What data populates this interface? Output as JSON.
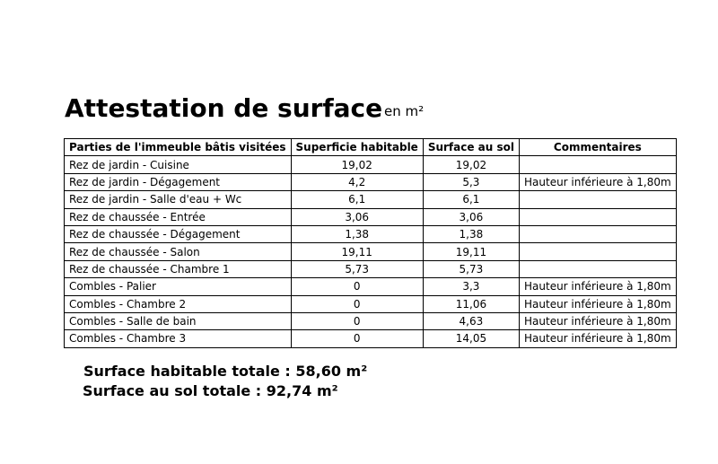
{
  "header": {
    "title": "Attestation de surface",
    "unit": "en m²"
  },
  "table": {
    "columns": [
      "Parties de l'immeuble bâtis visitées",
      "Superficie habitable",
      "Surface au sol",
      "Commentaires"
    ],
    "rows": [
      [
        "Rez de jardin - Cuisine",
        "19,02",
        "19,02",
        ""
      ],
      [
        "Rez de jardin - Dégagement",
        "4,2",
        "5,3",
        "Hauteur inférieure à 1,80m"
      ],
      [
        "Rez de jardin - Salle d'eau + Wc",
        "6,1",
        "6,1",
        ""
      ],
      [
        "Rez de chaussée - Entrée",
        "3,06",
        "3,06",
        ""
      ],
      [
        "Rez de chaussée - Dégagement",
        "1,38",
        "1,38",
        ""
      ],
      [
        "Rez de chaussée - Salon",
        "19,11",
        "19,11",
        ""
      ],
      [
        "Rez de chaussée - Chambre 1",
        "5,73",
        "5,73",
        ""
      ],
      [
        "Combles - Palier",
        "0",
        "3,3",
        "Hauteur inférieure à 1,80m"
      ],
      [
        "Combles - Chambre 2",
        "0",
        "11,06",
        "Hauteur inférieure à 1,80m"
      ],
      [
        "Combles - Salle de bain",
        "0",
        "4,63",
        "Hauteur inférieure à 1,80m"
      ],
      [
        "Combles - Chambre 3",
        "0",
        "14,05",
        "Hauteur inférieure à 1,80m"
      ]
    ]
  },
  "totals": {
    "habitable": "Surface habitable totale : 58,60 m²",
    "sol": "Surface au sol totale : 92,74 m²"
  }
}
